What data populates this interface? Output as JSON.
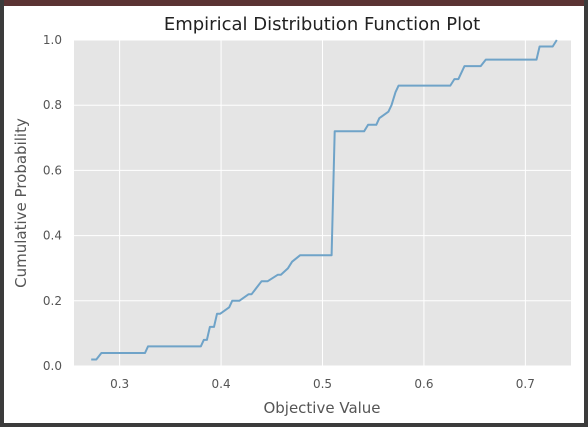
{
  "chart_data": {
    "type": "line",
    "title": "Empirical Distribution Function Plot",
    "xlabel": "Objective Value",
    "ylabel": "Cumulative Probability",
    "xlim": [
      0.255,
      0.745
    ],
    "ylim": [
      0.0,
      1.0
    ],
    "xticks": [
      0.3,
      0.4,
      0.5,
      0.6,
      0.7
    ],
    "yticks": [
      0.0,
      0.2,
      0.4,
      0.6,
      0.8,
      1.0
    ],
    "xtick_labels": [
      "0.3",
      "0.4",
      "0.5",
      "0.6",
      "0.7"
    ],
    "ytick_labels": [
      "0.0",
      "0.2",
      "0.4",
      "0.6",
      "0.8",
      "1.0"
    ],
    "grid": true,
    "background": "#e5e5e5",
    "grid_color": "#ffffff",
    "line_color": "#6fa3c8",
    "series": [
      {
        "x": [
          0.272,
          0.277,
          0.282,
          0.325,
          0.328,
          0.38,
          0.383,
          0.386,
          0.389,
          0.393,
          0.396,
          0.399,
          0.408,
          0.411,
          0.415,
          0.418,
          0.427,
          0.43,
          0.44,
          0.443,
          0.446,
          0.456,
          0.459,
          0.466,
          0.47,
          0.478,
          0.482,
          0.509,
          0.512,
          0.515,
          0.541,
          0.545,
          0.553,
          0.556,
          0.565,
          0.568,
          0.572,
          0.575,
          0.58,
          0.626,
          0.63,
          0.634,
          0.64,
          0.644,
          0.656,
          0.661,
          0.664,
          0.711,
          0.714,
          0.727,
          0.731
        ],
        "y": [
          0.02,
          0.02,
          0.04,
          0.04,
          0.06,
          0.06,
          0.08,
          0.08,
          0.12,
          0.12,
          0.16,
          0.16,
          0.18,
          0.2,
          0.2,
          0.2,
          0.22,
          0.22,
          0.26,
          0.26,
          0.26,
          0.28,
          0.28,
          0.3,
          0.32,
          0.34,
          0.34,
          0.34,
          0.72,
          0.72,
          0.72,
          0.74,
          0.74,
          0.76,
          0.78,
          0.8,
          0.84,
          0.86,
          0.86,
          0.86,
          0.88,
          0.88,
          0.92,
          0.92,
          0.92,
          0.94,
          0.94,
          0.94,
          0.98,
          0.98,
          1.0
        ]
      }
    ]
  }
}
